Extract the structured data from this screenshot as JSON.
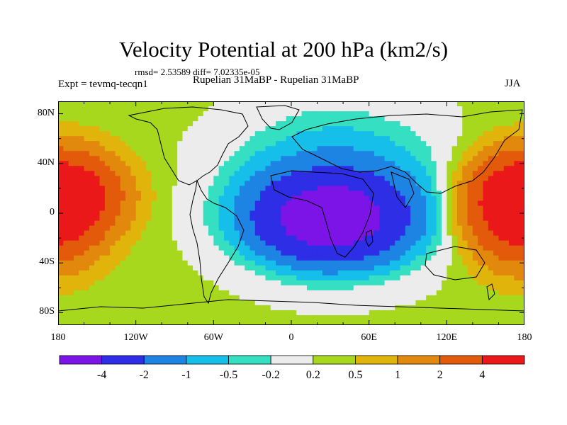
{
  "chart_data": {
    "type": "heatmap",
    "title": "Velocity Potential at 200 hPa (km2/s)",
    "stats_text": "rmsd= 2.53589 diff= 7.02335e-05",
    "left_subtitle": "Expt = tevmq-tecqn1",
    "center_subtitle": "Rupelian  31MaBP - Rupelian  31MaBP",
    "right_subtitle": "JJA",
    "xlim": [
      -180,
      180
    ],
    "ylim": [
      -90,
      90
    ],
    "lat_ticks": [
      "80N",
      "40N",
      "0",
      "40S",
      "80S"
    ],
    "lon_ticks": [
      "180",
      "120W",
      "60W",
      "0",
      "60E",
      "120E",
      "180"
    ],
    "colorbar": {
      "levels": [
        -4,
        -2,
        -1,
        -0.5,
        -0.2,
        0.2,
        0.5,
        1,
        2,
        4
      ],
      "labels": [
        "-4",
        "-2",
        "-1",
        "-0.5",
        "-0.2",
        "0.2",
        "0.5",
        "1",
        "2",
        "4"
      ],
      "colors": [
        "#7c14e8",
        "#2d2ee6",
        "#1e84e4",
        "#16bfea",
        "#35dfc2",
        "#ececec",
        "#a8d81e",
        "#e1b40c",
        "#e2880c",
        "#e35a0a",
        "#ea1818"
      ]
    },
    "field_centers": [
      {
        "lon": 30,
        "lat": -5,
        "value": -5.5,
        "radius_lon": 55,
        "radius_lat": 32
      },
      {
        "lon": 35,
        "lat": 20,
        "value": -1.5,
        "radius_lon": 80,
        "radius_lat": 60
      },
      {
        "lon": -175,
        "lat": 15,
        "value": 5.0,
        "radius_lon": 40,
        "radius_lat": 30
      },
      {
        "lon": 175,
        "lat": 0,
        "value": 4.5,
        "radius_lon": 35,
        "radius_lat": 38
      }
    ]
  }
}
